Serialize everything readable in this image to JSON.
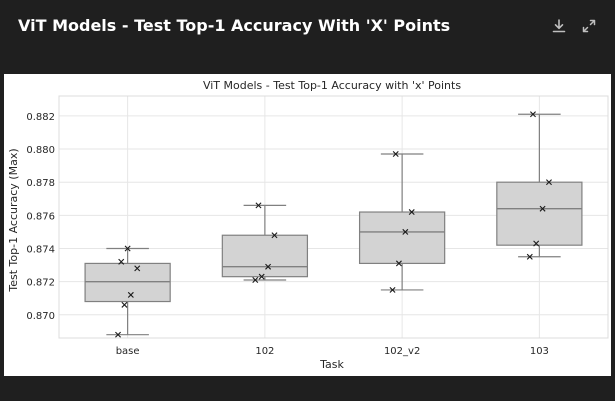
{
  "header": {
    "title": "ViT Models - Test Top-1 Accuracy With 'X' Points",
    "download_icon": "download-icon",
    "expand_icon": "expand-icon"
  },
  "colors": {
    "background": "#1f1f1f",
    "box_fill": "#d3d3d3",
    "box_stroke": "#808080",
    "grid": "#e6e6e6"
  },
  "chart_data": {
    "type": "box",
    "title": "ViT Models - Test Top-1 Accuracy with 'x' Points",
    "xlabel": "Task",
    "ylabel": "Test Top-1 Accuracy (Max)",
    "ylim": [
      0.8686,
      0.8832
    ],
    "yticks": [
      "0.870",
      "0.872",
      "0.874",
      "0.876",
      "0.878",
      "0.880",
      "0.882"
    ],
    "grid": true,
    "categories": [
      "base",
      "102",
      "102_v2",
      "103"
    ],
    "boxes": [
      {
        "category": "base",
        "whisker_low": 0.8688,
        "q1": 0.8708,
        "median": 0.872,
        "q3": 0.8731,
        "whisker_high": 0.874,
        "points": [
          0.8688,
          0.8706,
          0.8712,
          0.8728,
          0.8732,
          0.874
        ]
      },
      {
        "category": "102",
        "whisker_low": 0.8721,
        "q1": 0.8723,
        "median": 0.8729,
        "q3": 0.8748,
        "whisker_high": 0.8766,
        "points": [
          0.8721,
          0.8723,
          0.8729,
          0.8748,
          0.8766
        ]
      },
      {
        "category": "102_v2",
        "whisker_low": 0.8715,
        "q1": 0.8731,
        "median": 0.875,
        "q3": 0.8762,
        "whisker_high": 0.8797,
        "points": [
          0.8715,
          0.8731,
          0.875,
          0.8762,
          0.8797
        ]
      },
      {
        "category": "103",
        "whisker_low": 0.8735,
        "q1": 0.8742,
        "median": 0.8764,
        "q3": 0.878,
        "whisker_high": 0.8821,
        "points": [
          0.8735,
          0.8743,
          0.8764,
          0.878,
          0.8821
        ]
      }
    ]
  }
}
